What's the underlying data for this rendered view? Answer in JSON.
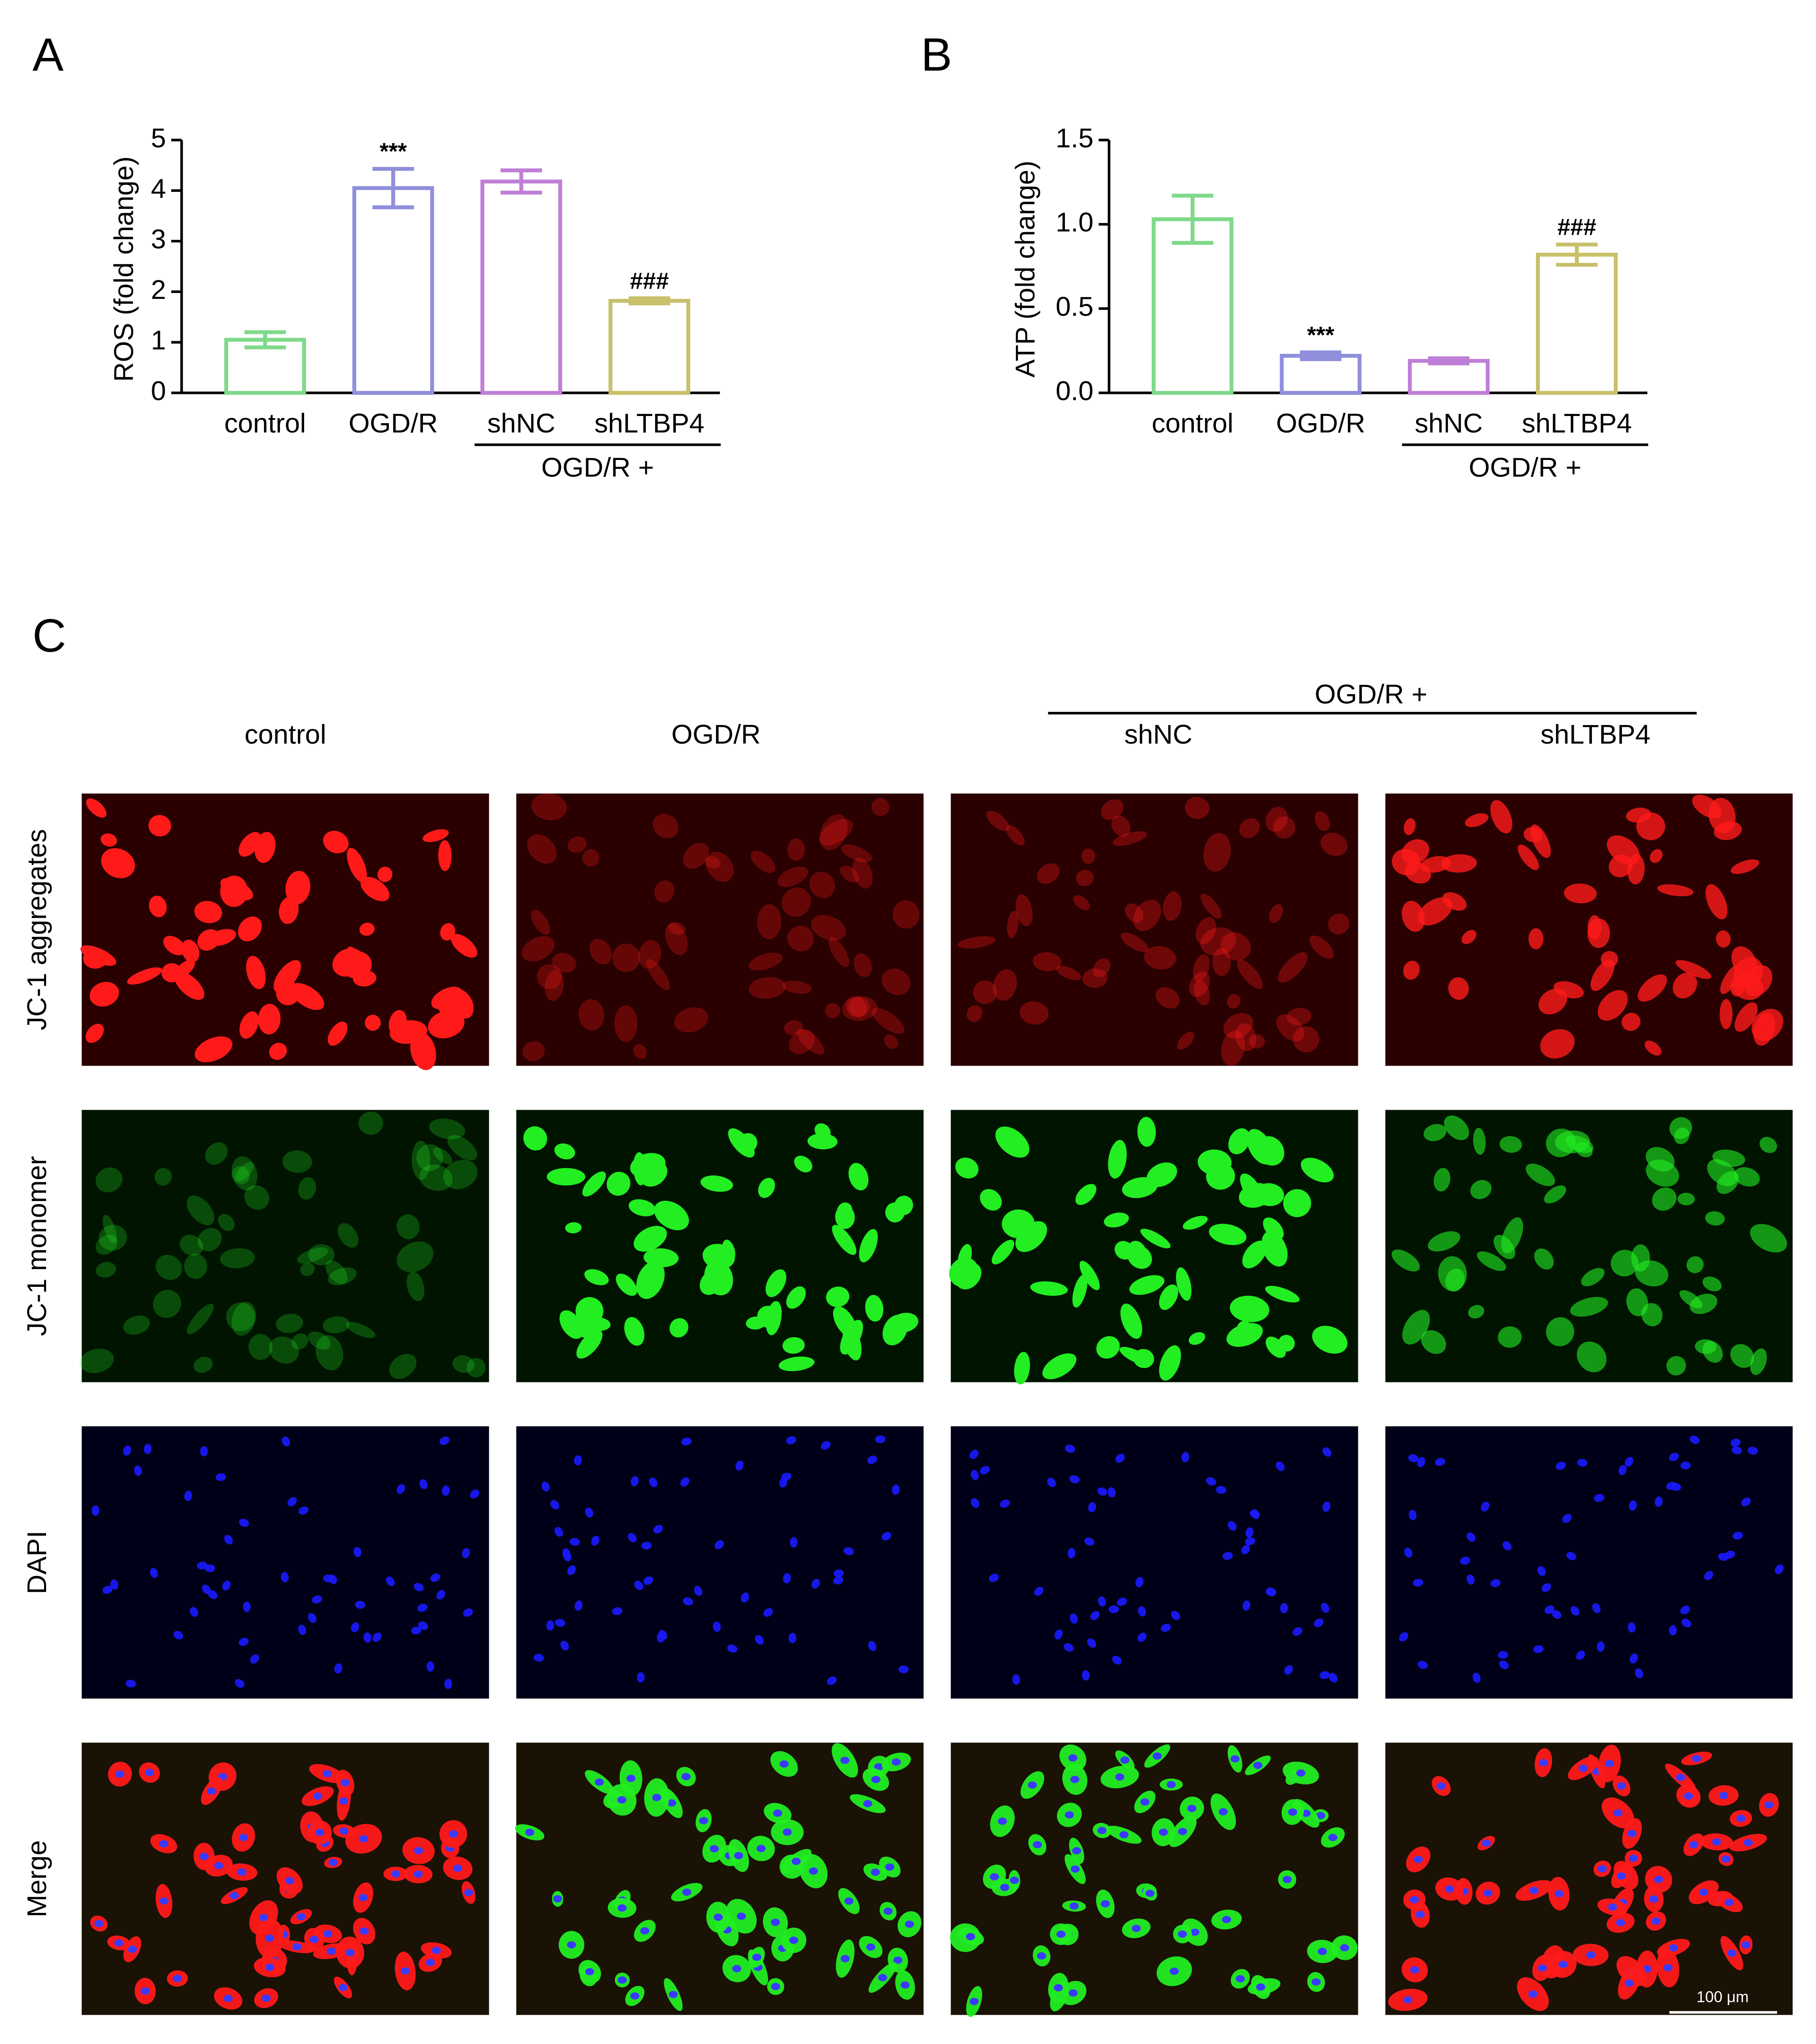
{
  "panel_labels": [
    "A",
    "B",
    "C"
  ],
  "chart_data": [
    {
      "type": "bar",
      "y_label": "ROS (fold change)",
      "categories": [
        "control",
        "OGD/R",
        "shNC",
        "shLTBP4"
      ],
      "values": [
        1.05,
        4.05,
        4.18,
        1.82
      ],
      "errors": [
        0.15,
        0.38,
        0.22,
        0.05
      ],
      "colors": [
        "#7fd98a",
        "#8f8fdc",
        "#c07fd6",
        "#c8c06a"
      ],
      "significance": [
        null,
        "***",
        null,
        "###"
      ],
      "group_label": "OGD/R +",
      "ylim": [
        0,
        5
      ],
      "yticks": [
        0,
        1,
        2,
        3,
        4,
        5
      ]
    },
    {
      "type": "bar",
      "y_label": "ATP (fold change)",
      "categories": [
        "control",
        "OGD/R",
        "shNC",
        "shLTBP4"
      ],
      "values": [
        1.03,
        0.22,
        0.19,
        0.82
      ],
      "errors": [
        0.14,
        0.02,
        0.015,
        0.06
      ],
      "colors": [
        "#7fd98a",
        "#8f8fdc",
        "#c07fd6",
        "#c8c06a"
      ],
      "significance": [
        null,
        "***",
        null,
        "###"
      ],
      "group_label": "OGD/R +",
      "ylim": [
        0,
        1.5
      ],
      "yticks": [
        {
          "value": 0,
          "label": "0.0"
        },
        {
          "value": 0.5,
          "label": "0.5"
        },
        {
          "value": 1,
          "label": "1.0"
        },
        {
          "value": 1.5,
          "label": "1.5"
        }
      ]
    }
  ],
  "microscopy": {
    "columns": [
      "control",
      "OGD/R",
      "shNC",
      "shLTBP4"
    ],
    "group_label": "OGD/R +",
    "rows": [
      "JC-1 aggregates",
      "JC-1 monomer",
      "DAPI",
      "Merge"
    ],
    "scale_bar": "100 μm"
  }
}
